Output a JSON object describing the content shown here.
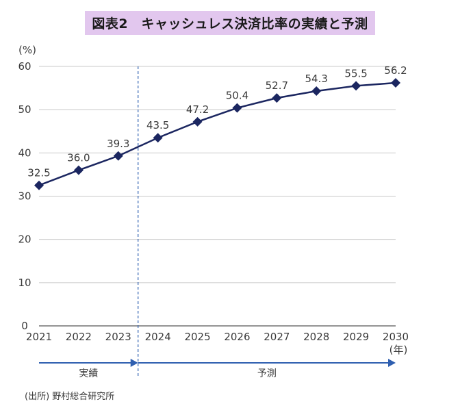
{
  "title": "図表2　キャッシュレス決済比率の実績と予測",
  "source": "(出所) 野村総合研究所",
  "chart_data": {
    "type": "line",
    "ylabel": "(%)",
    "xlabel": "(年)",
    "ylim": [
      0,
      60
    ],
    "yticks": [
      0,
      10,
      20,
      30,
      40,
      50,
      60
    ],
    "x": [
      2021,
      2022,
      2023,
      2024,
      2025,
      2026,
      2027,
      2028,
      2029,
      2030
    ],
    "series": [
      {
        "values": [
          32.5,
          36.0,
          39.3,
          43.5,
          47.2,
          50.4,
          52.7,
          54.3,
          55.5,
          56.2
        ]
      }
    ],
    "value_labels": [
      "32.5",
      "36.0",
      "39.3",
      "43.5",
      "47.2",
      "50.4",
      "52.7",
      "54.3",
      "55.5",
      "56.2"
    ],
    "grid": true,
    "divider_after_index": 2,
    "periods": [
      {
        "label": "実績",
        "from": 2021,
        "to": 2023
      },
      {
        "label": "予測",
        "from": 2023,
        "to": 2030
      }
    ],
    "colors": {
      "line": "#1b2660",
      "grid": "#c8c8c8",
      "divider": "#2f5fb0",
      "arrow": "#2f5fb0"
    }
  }
}
